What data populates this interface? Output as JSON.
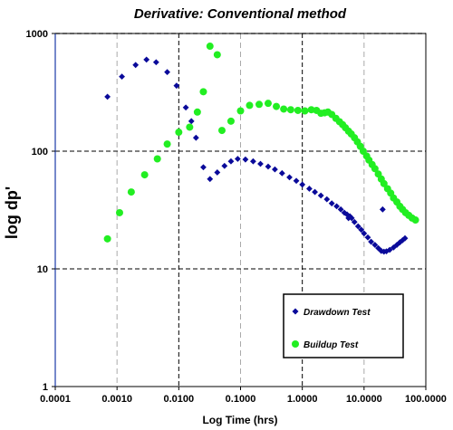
{
  "chart_data": {
    "type": "scatter",
    "title": "Derivative: Conventional method",
    "xlabel": "Log Time (hrs)",
    "ylabel": "log dp'",
    "x_scale": "log",
    "y_scale": "log",
    "xlim": [
      0.0001,
      100
    ],
    "ylim": [
      1,
      1000
    ],
    "x_ticks": [
      "0.0001",
      "0.0010",
      "0.0100",
      "0.1000",
      "1.0000",
      "10.0000",
      "100.0000"
    ],
    "y_ticks": [
      "1",
      "10",
      "100",
      "1000"
    ],
    "grid": true,
    "legend_position": "bottom-right",
    "colors": {
      "drawdown": "#0a0a9a",
      "buildup": "#22ee22",
      "grid_major": "#000000",
      "grid_minor": "#aaaaaa"
    },
    "series": [
      {
        "name": "Drawdown Test",
        "marker": "diamond",
        "points": [
          [
            0.0007,
            290
          ],
          [
            0.0012,
            430
          ],
          [
            0.002,
            540
          ],
          [
            0.003,
            600
          ],
          [
            0.0043,
            570
          ],
          [
            0.0065,
            470
          ],
          [
            0.0092,
            360
          ],
          [
            0.013,
            235
          ],
          [
            0.016,
            180
          ],
          [
            0.019,
            130
          ],
          [
            0.025,
            73
          ],
          [
            0.032,
            58
          ],
          [
            0.042,
            66
          ],
          [
            0.055,
            75
          ],
          [
            0.07,
            82
          ],
          [
            0.09,
            86
          ],
          [
            0.12,
            85
          ],
          [
            0.16,
            82
          ],
          [
            0.21,
            78
          ],
          [
            0.28,
            74
          ],
          [
            0.36,
            70
          ],
          [
            0.47,
            65
          ],
          [
            0.62,
            60
          ],
          [
            0.8,
            56
          ],
          [
            1.0,
            52
          ],
          [
            1.3,
            48
          ],
          [
            1.6,
            45
          ],
          [
            2.0,
            42
          ],
          [
            2.5,
            39
          ],
          [
            3.0,
            36
          ],
          [
            3.6,
            34
          ],
          [
            4.2,
            32
          ],
          [
            4.8,
            30
          ],
          [
            5.3,
            29
          ],
          [
            5.6,
            27
          ],
          [
            5.9,
            28
          ],
          [
            6.3,
            27
          ],
          [
            7.0,
            25
          ],
          [
            8.0,
            23
          ],
          [
            9.0,
            21.5
          ],
          [
            10.0,
            20
          ],
          [
            11.5,
            18.5
          ],
          [
            13.0,
            17
          ],
          [
            15.0,
            16
          ],
          [
            17.0,
            15
          ],
          [
            19.0,
            14.2
          ],
          [
            21.0,
            14
          ],
          [
            23.0,
            14.1
          ],
          [
            26.0,
            14.5
          ],
          [
            30.0,
            15.2
          ],
          [
            34.0,
            16
          ],
          [
            38.0,
            16.8
          ],
          [
            42.0,
            17.5
          ],
          [
            46.0,
            18.2
          ],
          [
            20.0,
            32
          ]
        ]
      },
      {
        "name": "Buildup Test",
        "marker": "circle",
        "points": [
          [
            0.0007,
            18
          ],
          [
            0.0011,
            30
          ],
          [
            0.0017,
            45
          ],
          [
            0.0028,
            63
          ],
          [
            0.0045,
            86
          ],
          [
            0.0065,
            115
          ],
          [
            0.01,
            145
          ],
          [
            0.015,
            160
          ],
          [
            0.02,
            215
          ],
          [
            0.025,
            320
          ],
          [
            0.032,
            780
          ],
          [
            0.042,
            660
          ],
          [
            0.05,
            150
          ],
          [
            0.07,
            180
          ],
          [
            0.1,
            220
          ],
          [
            0.14,
            245
          ],
          [
            0.2,
            250
          ],
          [
            0.28,
            255
          ],
          [
            0.38,
            240
          ],
          [
            0.5,
            228
          ],
          [
            0.65,
            225
          ],
          [
            0.85,
            222
          ],
          [
            1.1,
            220
          ],
          [
            1.4,
            225
          ],
          [
            1.7,
            222
          ],
          [
            2.0,
            210
          ],
          [
            2.3,
            212
          ],
          [
            2.6,
            215
          ],
          [
            3.0,
            205
          ],
          [
            3.5,
            190
          ],
          [
            4.0,
            178
          ],
          [
            4.5,
            168
          ],
          [
            5.0,
            158
          ],
          [
            5.6,
            148
          ],
          [
            6.2,
            140
          ],
          [
            7.0,
            130
          ],
          [
            7.8,
            120
          ],
          [
            8.7,
            110
          ],
          [
            9.7,
            100
          ],
          [
            11.0,
            91
          ],
          [
            12.0,
            84
          ],
          [
            13.5,
            77
          ],
          [
            15.0,
            71
          ],
          [
            17.0,
            64
          ],
          [
            19.0,
            58
          ],
          [
            21.0,
            53
          ],
          [
            24.0,
            48
          ],
          [
            27.0,
            44
          ],
          [
            30.0,
            40
          ],
          [
            34.0,
            37
          ],
          [
            38.0,
            34
          ],
          [
            42.0,
            32
          ],
          [
            47.0,
            30
          ],
          [
            53.0,
            28.5
          ],
          [
            60.0,
            27
          ],
          [
            68.0,
            26
          ]
        ]
      }
    ]
  }
}
